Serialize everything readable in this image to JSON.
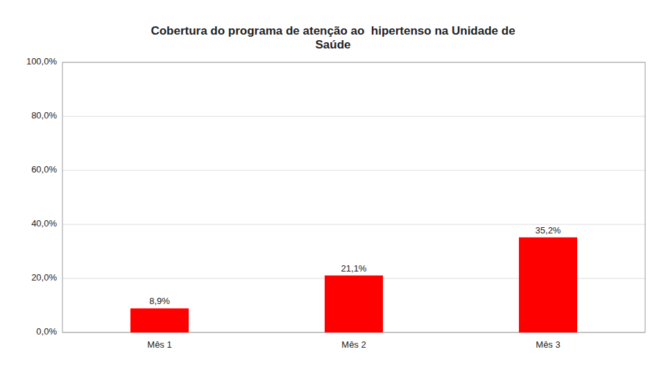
{
  "chart_data": {
    "type": "bar",
    "title": "Cobertura do programa de atenção ao  hipertenso na Unidade de\nSaúde",
    "categories": [
      "Mês 1",
      "Mês 2",
      "Mês 3"
    ],
    "values": [
      8.9,
      21.1,
      35.2
    ],
    "value_labels": [
      "8,9%",
      "21,1%",
      "35,2%"
    ],
    "data_labels": true,
    "color": "#ff0000",
    "ylim": [
      0,
      100
    ],
    "yticks": [
      {
        "value": 0,
        "label": "0,0%"
      },
      {
        "value": 20,
        "label": "20,0%"
      },
      {
        "value": 40,
        "label": "40,0%"
      },
      {
        "value": 60,
        "label": "60,0%"
      },
      {
        "value": 80,
        "label": "80,0%"
      },
      {
        "value": 100,
        "label": "100,0%"
      }
    ],
    "grid": true
  }
}
